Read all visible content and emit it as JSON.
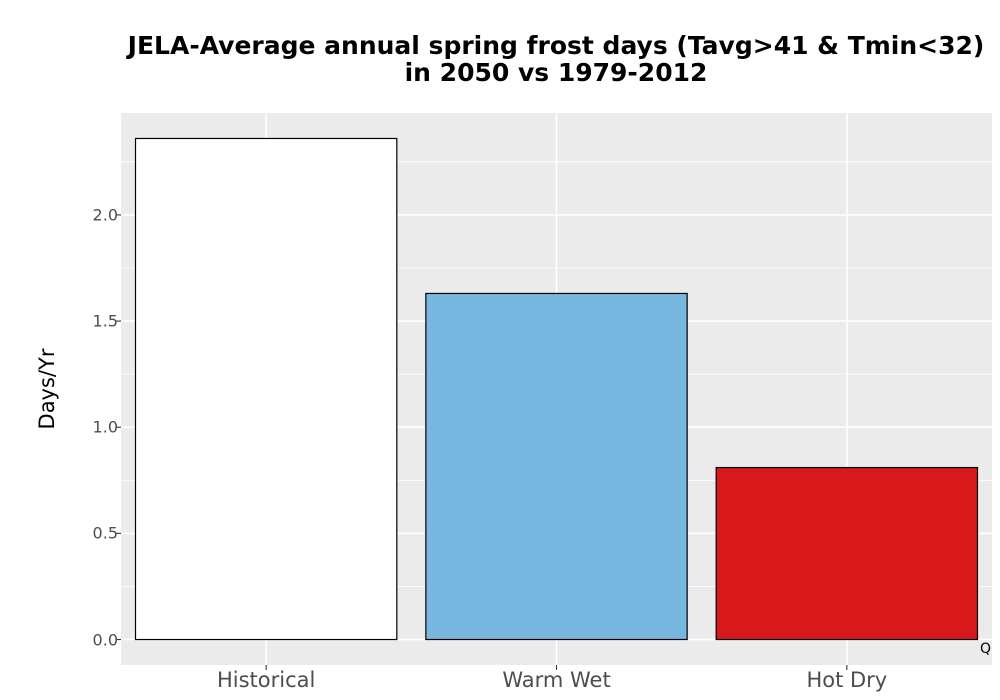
{
  "chart_data": {
    "type": "bar",
    "title_lines": [
      "JELA-Average annual spring frost days (Tavg>41 & Tmin<32)",
      "in 2050 vs 1979-2012"
    ],
    "xlabel": "",
    "ylabel": "Days/Yr",
    "categories": [
      "Historical",
      "Warm Wet",
      "Hot Dry"
    ],
    "values": [
      2.36,
      1.63,
      0.81
    ],
    "bar_colors": [
      "#ffffff",
      "#78b7e0",
      "#d7191c"
    ],
    "bar_outline_color": "#000000",
    "panel_background": "#ebebeb",
    "gridline_color": "#ffffff",
    "ylim": [
      -0.12,
      2.48
    ],
    "yticks": [
      0.0,
      0.5,
      1.0,
      1.5,
      2.0
    ],
    "ytick_labels": [
      "0.0",
      "0.5",
      "1.0",
      "1.5",
      "2.0"
    ],
    "grid": true,
    "legend": "none",
    "corner_note": "Q"
  }
}
